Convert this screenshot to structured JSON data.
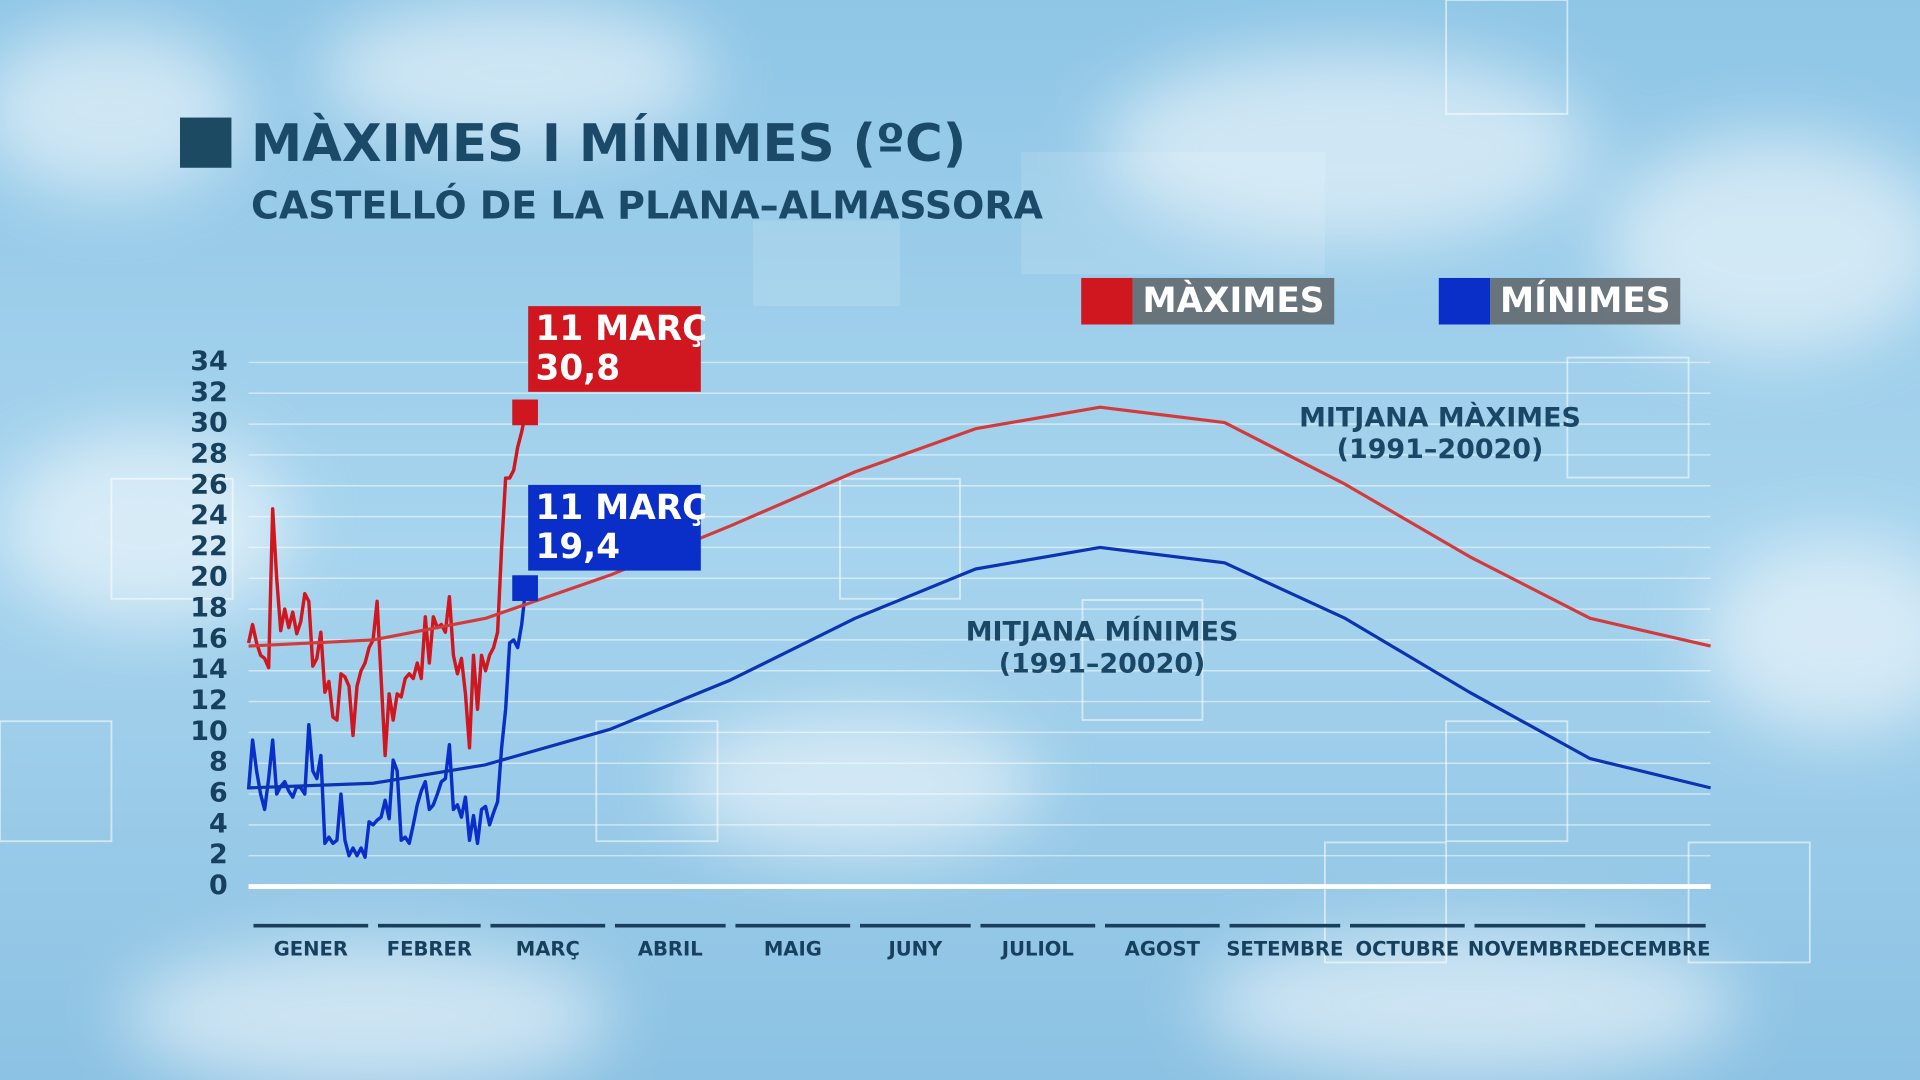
{
  "chart_data": {
    "type": "line",
    "title": "MÀXIMES I MÍNIMES (ºC)",
    "subtitle": "CASTELLÓ DE LA PLANA–ALMASSORA",
    "xlim": [
      1,
      365
    ],
    "xticks": [
      {
        "value": 1,
        "label": "GENER"
      },
      {
        "value": 32,
        "label": "FEBRER"
      },
      {
        "value": 60,
        "label": "MARÇ"
      },
      {
        "value": 91,
        "label": "ABRIL"
      },
      {
        "value": 121,
        "label": "MAIG"
      },
      {
        "value": 152,
        "label": "JUNY"
      },
      {
        "value": 182,
        "label": "JULIOL"
      },
      {
        "value": 213,
        "label": "AGOST"
      },
      {
        "value": 244,
        "label": "SETEMBRE"
      },
      {
        "value": 274,
        "label": "OCTUBRE"
      },
      {
        "value": 305,
        "label": "NOVEMBRE"
      },
      {
        "value": 335,
        "label": "DECEMBRE"
      }
    ],
    "ylim": [
      0,
      34
    ],
    "yticks": [
      0,
      2,
      4,
      6,
      8,
      10,
      12,
      14,
      16,
      18,
      20,
      22,
      24,
      26,
      28,
      30,
      32,
      34
    ],
    "grid": true,
    "legend": "top-right",
    "series": [
      {
        "name": "MÀXIMES",
        "color": "#d0161f",
        "x": [
          1,
          2,
          3,
          4,
          5,
          6,
          7,
          8,
          9,
          10,
          11,
          12,
          13,
          14,
          15,
          16,
          17,
          18,
          19,
          20,
          21,
          22,
          23,
          24,
          25,
          26,
          27,
          28,
          29,
          30,
          31,
          32,
          33,
          34,
          35,
          36,
          37,
          38,
          39,
          40,
          41,
          42,
          43,
          44,
          45,
          46,
          47,
          48,
          49,
          50,
          51,
          52,
          53,
          54,
          55,
          56,
          57,
          58,
          59,
          60,
          61,
          62,
          63,
          64,
          65,
          66,
          67,
          68,
          69,
          70
        ],
        "values": [
          15.8,
          17,
          15.8,
          15,
          14.8,
          14.2,
          24.5,
          20,
          16.6,
          18,
          16.8,
          17.8,
          16.4,
          17.2,
          19,
          18.5,
          14.3,
          14.8,
          16.5,
          12.6,
          13.3,
          11,
          10.8,
          13.8,
          13.6,
          13,
          9.8,
          13,
          14,
          14.5,
          15.5,
          16,
          18.5,
          13.5,
          8.5,
          12.5,
          10.8,
          12.5,
          12.3,
          13.5,
          13.8,
          13.5,
          14.5,
          13.5,
          17.5,
          14.5,
          17.5,
          16.8,
          17,
          16.5,
          18.8,
          15,
          13.8,
          14.8,
          12.5,
          9,
          15,
          11.5,
          15,
          14,
          15,
          15.5,
          16.5,
          22,
          26.5,
          26.5,
          27,
          28.5,
          29.5,
          30.8
        ]
      },
      {
        "name": "MÍNIMES",
        "color": "#0a2fc8",
        "x": [
          1,
          2,
          3,
          4,
          5,
          6,
          7,
          8,
          9,
          10,
          11,
          12,
          13,
          14,
          15,
          16,
          17,
          18,
          19,
          20,
          21,
          22,
          23,
          24,
          25,
          26,
          27,
          28,
          29,
          30,
          31,
          32,
          33,
          34,
          35,
          36,
          37,
          38,
          39,
          40,
          41,
          42,
          43,
          44,
          45,
          46,
          47,
          48,
          49,
          50,
          51,
          52,
          53,
          54,
          55,
          56,
          57,
          58,
          59,
          60,
          61,
          62,
          63,
          64,
          65,
          66,
          67,
          68,
          69,
          70
        ],
        "values": [
          6.3,
          9.5,
          7.5,
          6,
          5,
          7,
          9.5,
          6,
          6.5,
          6.8,
          6.2,
          5.8,
          6.5,
          6.4,
          6,
          10.5,
          7.5,
          7,
          8.5,
          2.8,
          3.2,
          2.8,
          3,
          6,
          3,
          2,
          2.5,
          2,
          2.5,
          1.9,
          4.2,
          4,
          4.3,
          4.5,
          5.6,
          4.4,
          8.2,
          7.5,
          3,
          3.2,
          2.8,
          4,
          5.3,
          6.2,
          6.8,
          5,
          5.3,
          6,
          6.8,
          7,
          9.2,
          5,
          5.3,
          4.5,
          5.8,
          3,
          4.6,
          2.8,
          5,
          5.2,
          4,
          4.8,
          5.5,
          9,
          11.5,
          15.8,
          16,
          15.5,
          17,
          19.4
        ]
      },
      {
        "name": "MITJANA MÀXIMES",
        "period": "(1991–20020)",
        "color": "#d23b3b",
        "x": [
          1,
          32,
          60,
          91,
          121,
          152,
          182,
          213,
          244,
          274,
          305,
          335,
          365
        ],
        "values": [
          15.6,
          16,
          17.4,
          20.2,
          23.4,
          26.9,
          29.7,
          31.1,
          30.1,
          26.1,
          21.4,
          17.4,
          15.6
        ]
      },
      {
        "name": "MITJANA MÍNIMES",
        "period": "(1991–20020)",
        "color": "#0b33b2",
        "x": [
          1,
          32,
          60,
          91,
          121,
          152,
          182,
          213,
          244,
          274,
          305,
          335,
          365
        ],
        "values": [
          6.4,
          6.7,
          7.9,
          10.2,
          13.4,
          17.4,
          20.6,
          22,
          21,
          17.4,
          12.6,
          8.3,
          6.4
        ]
      }
    ],
    "annotations": [
      {
        "text": "11 MARÇ",
        "series": 0,
        "index": 69,
        "value": 30.8,
        "label": "30,8"
      },
      {
        "text": "11 MARÇ",
        "series": 1,
        "index": 69,
        "value": 19.4,
        "label": "19,4"
      }
    ]
  }
}
